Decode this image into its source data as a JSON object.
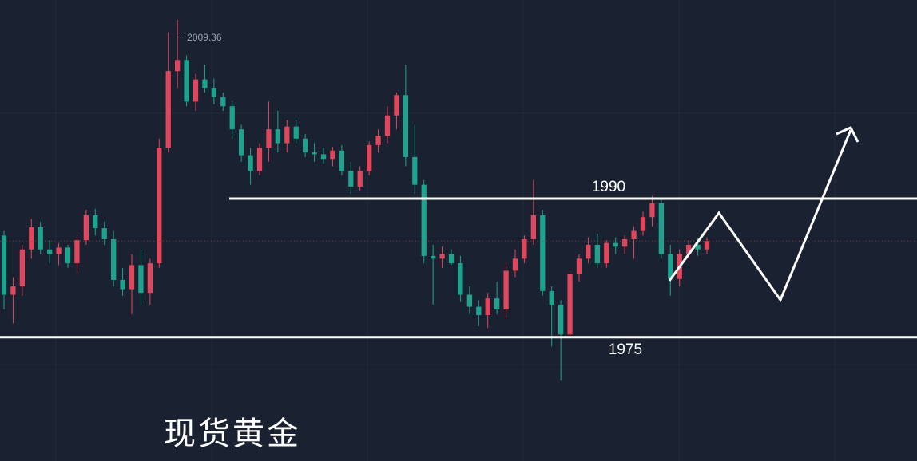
{
  "chart_data": {
    "type": "candlestick",
    "title": "现货黄金",
    "ylim": [
      1961.6,
      2011.5
    ],
    "up_color": "#e0475d",
    "down_color": "#1fa38f",
    "levels": [
      1990,
      1975
    ],
    "high_index": 19,
    "ohlc": [
      [
        1986.0,
        1986.5,
        1978.0,
        1979.6
      ],
      [
        1979.6,
        1981.5,
        1976.5,
        1980.5
      ],
      [
        1980.5,
        1985.0,
        1979.5,
        1984.5
      ],
      [
        1984.5,
        1987.8,
        1983.5,
        1986.9
      ],
      [
        1986.9,
        1987.5,
        1984.0,
        1984.5
      ],
      [
        1984.5,
        1985.5,
        1983.0,
        1984.0
      ],
      [
        1984.0,
        1985.2,
        1982.8,
        1984.7
      ],
      [
        1984.7,
        1985.0,
        1982.5,
        1983.0
      ],
      [
        1983.0,
        1986.0,
        1982.0,
        1985.5
      ],
      [
        1985.5,
        1988.8,
        1985.0,
        1988.2
      ],
      [
        1988.2,
        1988.9,
        1986.0,
        1986.8
      ],
      [
        1986.8,
        1987.5,
        1985.0,
        1985.6
      ],
      [
        1985.6,
        1986.5,
        1980.5,
        1981.2
      ],
      [
        1981.2,
        1982.5,
        1979.5,
        1980.2
      ],
      [
        1980.2,
        1984.0,
        1977.5,
        1982.8
      ],
      [
        1982.8,
        1984.5,
        1978.5,
        1979.8
      ],
      [
        1979.8,
        1983.5,
        1978.5,
        1983.0
      ],
      [
        1983.0,
        1996.5,
        1982.5,
        1995.5
      ],
      [
        1995.5,
        2008.0,
        1995.0,
        2003.8
      ],
      [
        2003.8,
        2009.36,
        2002.0,
        2005.0
      ],
      [
        2005.0,
        2005.5,
        2000.0,
        2000.5
      ],
      [
        2000.5,
        2003.5,
        1999.5,
        2002.9
      ],
      [
        2002.9,
        2004.5,
        2001.5,
        2002.0
      ],
      [
        2002.0,
        2003.0,
        2000.2,
        2001.0
      ],
      [
        2001.0,
        2001.5,
        1999.5,
        2000.0
      ],
      [
        2000.0,
        2000.5,
        1996.5,
        1997.5
      ],
      [
        1997.5,
        1998.0,
        1994.0,
        1994.7
      ],
      [
        1994.7,
        1995.5,
        1991.5,
        1993.0
      ],
      [
        1993.0,
        1996.0,
        1992.5,
        1995.5
      ],
      [
        1995.5,
        2000.5,
        1994.0,
        1997.5
      ],
      [
        1997.5,
        1999.5,
        1995.0,
        1996.0
      ],
      [
        1996.0,
        1998.5,
        1995.0,
        1997.8
      ],
      [
        1997.8,
        1998.5,
        1996.0,
        1996.5
      ],
      [
        1996.5,
        1997.0,
        1994.5,
        1995.0
      ],
      [
        1995.0,
        1996.0,
        1994.0,
        1994.8
      ],
      [
        1994.8,
        1995.5,
        1993.8,
        1994.3
      ],
      [
        1994.3,
        1995.6,
        1993.5,
        1995.2
      ],
      [
        1995.2,
        1995.8,
        1992.5,
        1993.0
      ],
      [
        1993.0,
        1994.0,
        1990.5,
        1991.3
      ],
      [
        1991.3,
        1993.5,
        1990.8,
        1993.0
      ],
      [
        1993.0,
        1996.2,
        1992.5,
        1995.8
      ],
      [
        1995.8,
        1997.5,
        1995.0,
        1996.8
      ],
      [
        1996.8,
        2000.0,
        1996.0,
        1999.0
      ],
      [
        1999.0,
        2001.5,
        1997.5,
        2001.2
      ],
      [
        2001.2,
        2004.5,
        1993.5,
        1994.5
      ],
      [
        1994.5,
        1998.0,
        1990.5,
        1991.5
      ],
      [
        1991.5,
        1992.0,
        1983.0,
        1983.8
      ],
      [
        1983.8,
        1985.0,
        1978.5,
        1983.5
      ],
      [
        1983.5,
        1984.8,
        1982.5,
        1984.0
      ],
      [
        1984.0,
        1984.5,
        1982.8,
        1983.0
      ],
      [
        1983.0,
        1983.8,
        1978.8,
        1979.6
      ],
      [
        1979.6,
        1980.5,
        1977.5,
        1978.3
      ],
      [
        1978.3,
        1979.0,
        1976.2,
        1977.4
      ],
      [
        1977.4,
        1979.8,
        1976.0,
        1979.2
      ],
      [
        1979.2,
        1981.0,
        1977.5,
        1978.0
      ],
      [
        1978.0,
        1983.0,
        1977.0,
        1982.2
      ],
      [
        1982.2,
        1984.5,
        1981.5,
        1983.5
      ],
      [
        1983.5,
        1986.0,
        1983.0,
        1985.6
      ],
      [
        1985.6,
        1992.0,
        1985.0,
        1988.2
      ],
      [
        1988.2,
        1988.8,
        1979.5,
        1980.0
      ],
      [
        1980.0,
        1980.5,
        1974.0,
        1978.5
      ],
      [
        1978.5,
        1979.0,
        1970.3,
        1975.3
      ],
      [
        1975.3,
        1982.2,
        1975.0,
        1981.8
      ],
      [
        1981.8,
        1984.0,
        1981.0,
        1983.5
      ],
      [
        1983.5,
        1985.8,
        1983.0,
        1985.0
      ],
      [
        1985.0,
        1986.2,
        1982.5,
        1983.0
      ],
      [
        1983.0,
        1985.5,
        1982.5,
        1985.2
      ],
      [
        1985.2,
        1985.8,
        1984.0,
        1984.8
      ],
      [
        1984.8,
        1986.0,
        1984.0,
        1985.6
      ],
      [
        1985.6,
        1987.0,
        1983.5,
        1986.5
      ],
      [
        1986.5,
        1988.6,
        1986.0,
        1988.0
      ],
      [
        1988.0,
        1990.3,
        1987.0,
        1989.5
      ],
      [
        1989.5,
        1990.0,
        1983.5,
        1984.0
      ],
      [
        1984.0,
        1985.0,
        1979.5,
        1981.3
      ],
      [
        1981.3,
        1984.5,
        1980.5,
        1984.0
      ],
      [
        1984.0,
        1985.5,
        1983.5,
        1985.0
      ],
      [
        1985.0,
        1985.7,
        1983.8,
        1984.5
      ],
      [
        1984.5,
        1985.8,
        1984.0,
        1985.4
      ]
    ]
  }
}
